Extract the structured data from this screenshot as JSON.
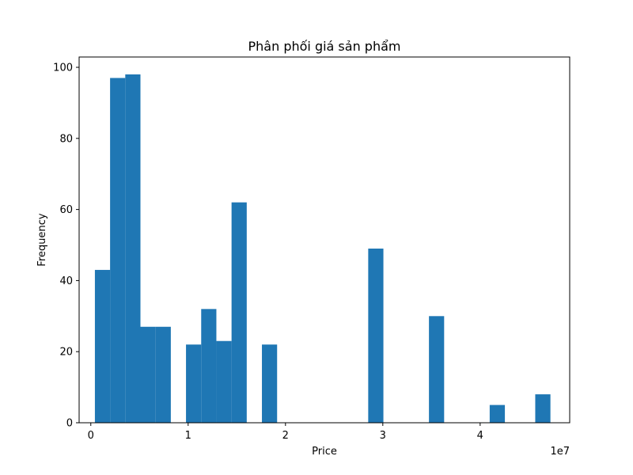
{
  "chart_data": {
    "type": "bar",
    "title": "Phân phối giá sản phẩm",
    "xlabel": "Price",
    "ylabel": "Frequency",
    "x_scale_label": "1e7",
    "bar_color": "#1f77b4",
    "xlim": [
      -1200000,
      49200000
    ],
    "ylim": [
      0,
      102.9
    ],
    "x_ticks": [
      0,
      10000000,
      20000000,
      30000000,
      40000000
    ],
    "x_tick_labels": [
      "0",
      "1",
      "2",
      "3",
      "4"
    ],
    "y_ticks": [
      0,
      20,
      40,
      60,
      80,
      100
    ],
    "y_tick_labels": [
      "0",
      "20",
      "40",
      "60",
      "80",
      "100"
    ],
    "bin_edges": [
      420000,
      1980000,
      3540000,
      5100000,
      6660000,
      8220000,
      9780000,
      11340000,
      12900000,
      14460000,
      16020000,
      17580000,
      19140000,
      20700000,
      22260000,
      23820000,
      25380000,
      26940000,
      28500000,
      30060000,
      31620000,
      33180000,
      34740000,
      36300000,
      37860000,
      39420000,
      40980000,
      42540000,
      44100000,
      45660000,
      47220000
    ],
    "values": [
      43,
      97,
      98,
      27,
      27,
      0,
      22,
      32,
      23,
      62,
      0,
      22,
      0,
      0,
      0,
      0,
      0,
      0,
      49,
      0,
      0,
      0,
      30,
      0,
      0,
      0,
      5,
      0,
      0,
      8
    ]
  }
}
